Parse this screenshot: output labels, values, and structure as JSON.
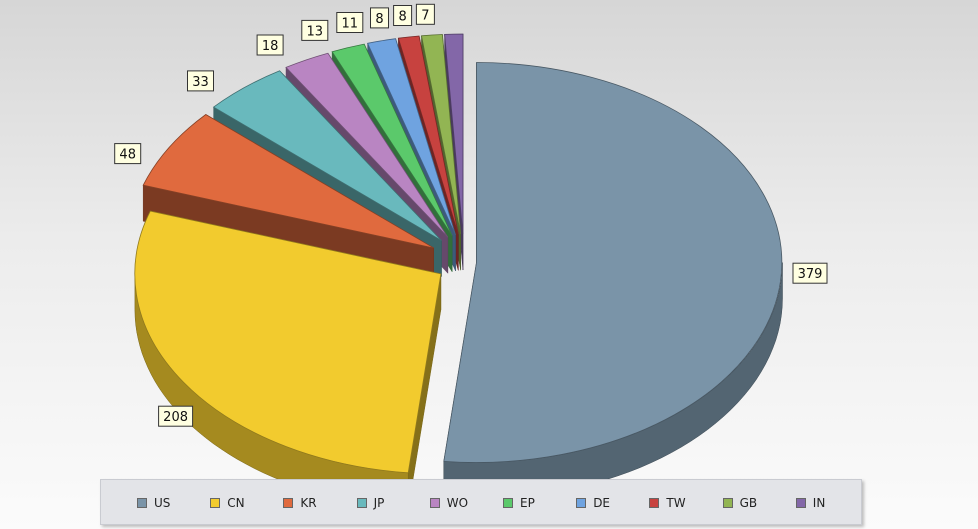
{
  "chart_data": {
    "type": "pie",
    "title": "",
    "categories": [
      "US",
      "CN",
      "KR",
      "JP",
      "WO",
      "EP",
      "DE",
      "TW",
      "GB",
      "IN"
    ],
    "values": [
      379,
      208,
      48,
      33,
      18,
      13,
      11,
      8,
      8,
      7
    ],
    "colors": [
      "#7a94a8",
      "#f2cb2e",
      "#e06a3e",
      "#69b9bd",
      "#b985c2",
      "#5bc96b",
      "#6fa3e0",
      "#c7423f",
      "#92b553",
      "#8367a8"
    ],
    "legend_position": "bottom",
    "exploded": true,
    "three_d": true
  }
}
